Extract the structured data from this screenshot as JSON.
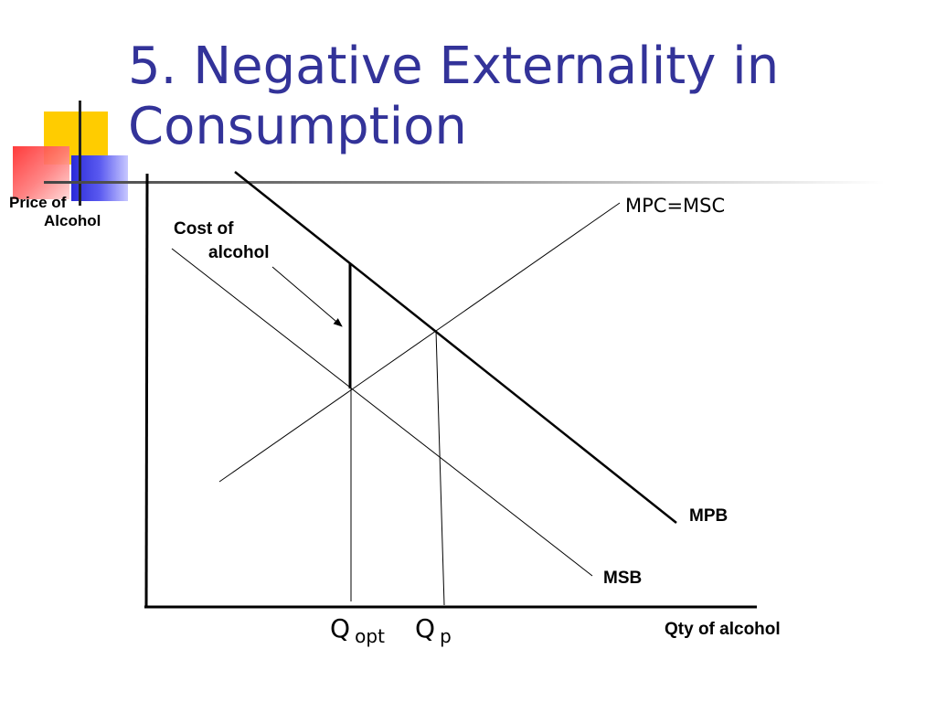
{
  "slide": {
    "title_line1": "5. Negative Externality in",
    "title_line2": "Consumption"
  },
  "diagram": {
    "y_axis_label_line1": "Price of",
    "y_axis_label_line2": "Alcohol",
    "x_axis_label": "Qty of alcohol",
    "annotation_line1": "Cost of",
    "annotation_line2": "alcohol",
    "curves": {
      "supply": "MPC=MSC",
      "private_benefit": "MPB",
      "social_benefit": "MSB"
    },
    "q_opt_main": "Q",
    "q_opt_sub": "opt",
    "q_p_main": "Q",
    "q_p_sub": "p"
  },
  "colors": {
    "title": "#333399",
    "yellow": "#ffcc00",
    "red": "#ff2b2b",
    "blue": "#2b2bd9"
  }
}
